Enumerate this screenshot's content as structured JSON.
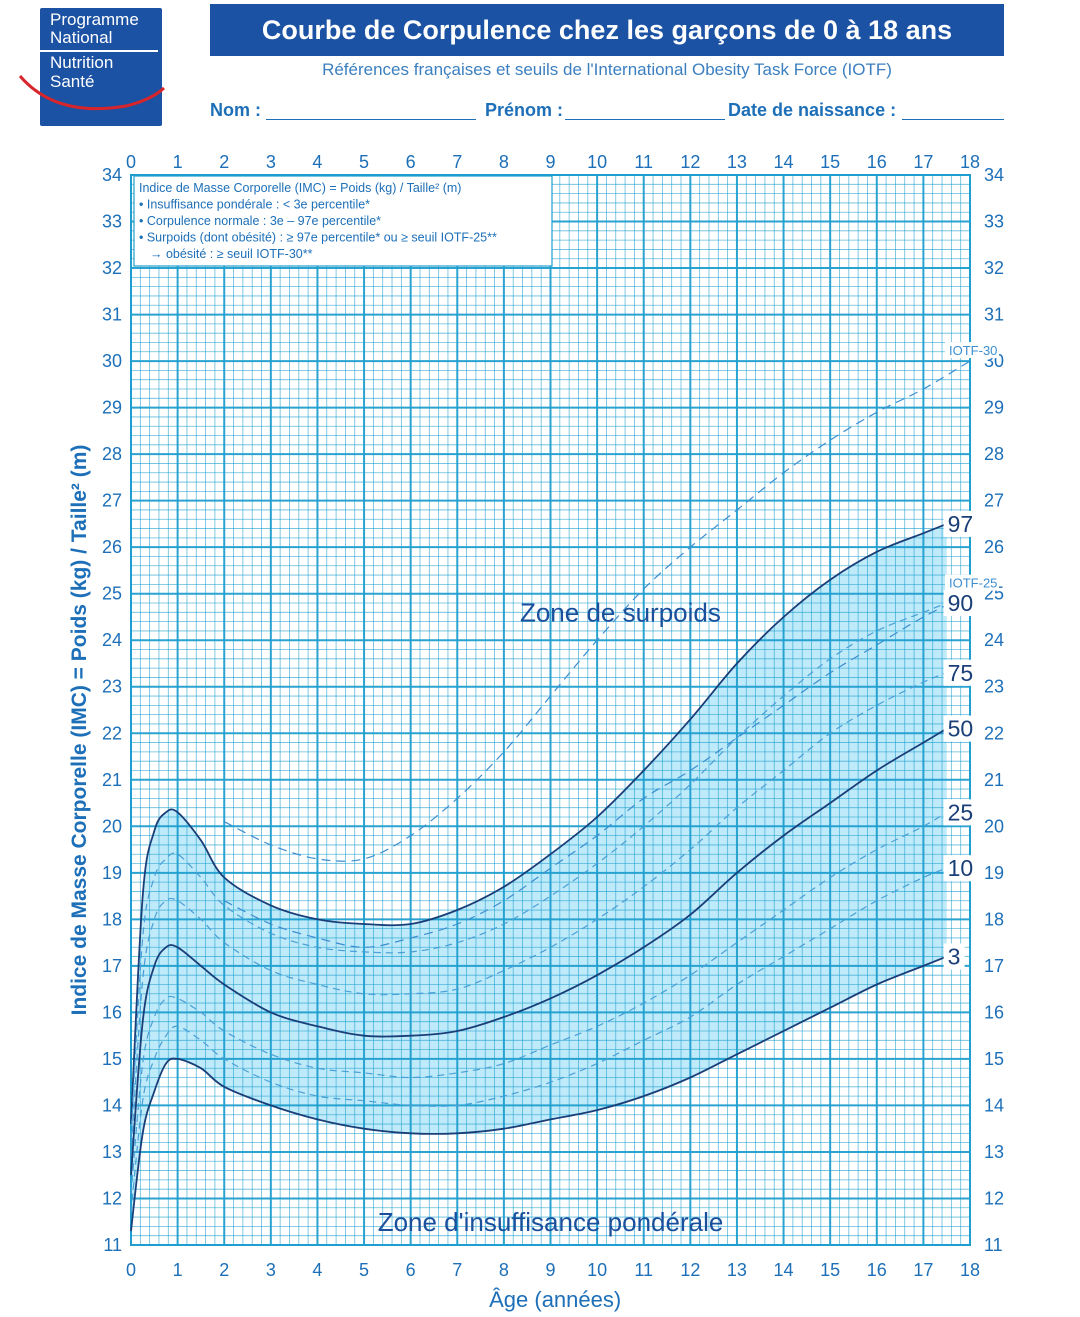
{
  "logo": {
    "line1": "Programme",
    "line2": "National",
    "line3": "Nutrition",
    "line4": "Santé"
  },
  "header": {
    "title": "Courbe de Corpulence chez les garçons de 0 à 18 ans",
    "subtitle": "Références françaises et seuils de l'International Obesity Task Force (IOTF)"
  },
  "fields": {
    "nom": "Nom :",
    "prenom": "Prénom :",
    "date": "Date de naissance :"
  },
  "colors": {
    "brand": "#1b52a3",
    "grid": "#1f9fcf",
    "curve": "#1a3e78",
    "zone": "#bfeafa"
  },
  "chart_data": {
    "type": "line",
    "xlabel": "Âge (années)",
    "ylabel": "Indice de Masse Corporelle (IMC) = Poids (kg) / Taille² (m)",
    "xlim": [
      0,
      18
    ],
    "ylim": [
      11,
      34
    ],
    "x_ticks": [
      0,
      1,
      2,
      3,
      4,
      5,
      6,
      7,
      8,
      9,
      10,
      11,
      12,
      13,
      14,
      15,
      16,
      17,
      18
    ],
    "y_ticks": [
      11,
      12,
      13,
      14,
      15,
      16,
      17,
      18,
      19,
      20,
      21,
      22,
      23,
      24,
      25,
      26,
      27,
      28,
      29,
      30,
      31,
      32,
      33,
      34
    ],
    "grid": true,
    "legend_box": {
      "line1": "Indice de Masse Corporelle (IMC) = Poids (kg) / Taille² (m)",
      "line2": "• Insuffisance pondérale : < 3e percentile*",
      "line3": "• Corpulence normale : 3e – 97e percentile*",
      "line4": "• Surpoids (dont obésité) : ≥ 97e percentile* ou ≥ seuil IOTF-25**",
      "line5": "→ obésité : ≥ seuil IOTF-30**"
    },
    "annotations": {
      "overweight_zone": "Zone de surpoids",
      "underweight_zone": "Zone d'insuffisance pondérale"
    },
    "series": [
      {
        "name": "97",
        "style": "solid",
        "label_shown": true,
        "x": [
          0,
          0.25,
          0.5,
          0.75,
          1,
          1.5,
          2,
          3,
          4,
          5,
          6,
          7,
          8,
          9,
          10,
          11,
          12,
          13,
          14,
          15,
          16,
          17,
          17.5
        ],
        "y": [
          13.6,
          18.5,
          19.9,
          20.3,
          20.3,
          19.7,
          18.9,
          18.3,
          18.0,
          17.9,
          17.9,
          18.2,
          18.7,
          19.4,
          20.2,
          21.2,
          22.3,
          23.5,
          24.5,
          25.3,
          25.9,
          26.3,
          26.5
        ]
      },
      {
        "name": "90",
        "style": "dashed",
        "label_shown": true,
        "x": [
          0,
          0.25,
          0.5,
          0.75,
          1,
          1.5,
          2,
          3,
          4,
          5,
          6,
          7,
          8,
          9,
          10,
          11,
          12,
          13,
          14,
          15,
          16,
          17,
          17.5
        ],
        "y": [
          13.3,
          17.6,
          18.9,
          19.3,
          19.4,
          18.9,
          18.3,
          17.7,
          17.4,
          17.3,
          17.3,
          17.5,
          17.9,
          18.5,
          19.2,
          20.0,
          20.9,
          21.9,
          22.8,
          23.6,
          24.2,
          24.6,
          24.8
        ]
      },
      {
        "name": "75",
        "style": "dashed",
        "label_shown": true,
        "x": [
          0,
          0.25,
          0.5,
          0.75,
          1,
          1.5,
          2,
          3,
          4,
          5,
          6,
          7,
          8,
          9,
          10,
          11,
          12,
          13,
          14,
          15,
          16,
          17,
          17.5
        ],
        "y": [
          12.9,
          16.7,
          18.0,
          18.4,
          18.4,
          18.0,
          17.5,
          16.9,
          16.6,
          16.4,
          16.4,
          16.5,
          16.9,
          17.4,
          18.0,
          18.7,
          19.5,
          20.4,
          21.2,
          22.0,
          22.6,
          23.1,
          23.3
        ]
      },
      {
        "name": "50",
        "style": "solid",
        "label_shown": true,
        "x": [
          0,
          0.25,
          0.5,
          0.75,
          1,
          1.5,
          2,
          3,
          4,
          5,
          6,
          7,
          8,
          9,
          10,
          11,
          12,
          13,
          14,
          15,
          16,
          17,
          17.5
        ],
        "y": [
          12.5,
          15.8,
          17.0,
          17.4,
          17.4,
          17.0,
          16.6,
          16.0,
          15.7,
          15.5,
          15.5,
          15.6,
          15.9,
          16.3,
          16.8,
          17.4,
          18.1,
          19.0,
          19.8,
          20.5,
          21.2,
          21.8,
          22.1
        ]
      },
      {
        "name": "25",
        "style": "dashed",
        "label_shown": true,
        "x": [
          0,
          0.25,
          0.5,
          0.75,
          1,
          1.5,
          2,
          3,
          4,
          5,
          6,
          7,
          8,
          9,
          10,
          11,
          12,
          13,
          14,
          15,
          16,
          17,
          17.5
        ],
        "y": [
          12.1,
          14.9,
          15.9,
          16.3,
          16.3,
          16.0,
          15.6,
          15.1,
          14.8,
          14.7,
          14.6,
          14.7,
          14.9,
          15.3,
          15.7,
          16.2,
          16.8,
          17.5,
          18.2,
          18.9,
          19.5,
          20.0,
          20.3
        ]
      },
      {
        "name": "10",
        "style": "dashed",
        "label_shown": true,
        "x": [
          0,
          0.25,
          0.5,
          0.75,
          1,
          1.5,
          2,
          3,
          4,
          5,
          6,
          7,
          8,
          9,
          10,
          11,
          12,
          13,
          14,
          15,
          16,
          17,
          17.5
        ],
        "y": [
          11.7,
          14.1,
          15.0,
          15.5,
          15.7,
          15.4,
          15.0,
          14.5,
          14.2,
          14.1,
          14.0,
          14.0,
          14.2,
          14.5,
          14.9,
          15.4,
          15.9,
          16.6,
          17.2,
          17.8,
          18.4,
          18.9,
          19.1
        ]
      },
      {
        "name": "3",
        "style": "solid",
        "label_shown": true,
        "x": [
          0,
          0.25,
          0.5,
          0.75,
          1,
          1.5,
          2,
          3,
          4,
          5,
          6,
          7,
          8,
          9,
          10,
          11,
          12,
          13,
          14,
          15,
          16,
          17,
          17.5
        ],
        "y": [
          11.3,
          13.4,
          14.3,
          14.9,
          15.0,
          14.8,
          14.4,
          14.0,
          13.7,
          13.5,
          13.4,
          13.4,
          13.5,
          13.7,
          13.9,
          14.2,
          14.6,
          15.1,
          15.6,
          16.1,
          16.6,
          17.0,
          17.2
        ]
      },
      {
        "name": "IOTF-30",
        "style": "dashed",
        "label_shown": true,
        "x": [
          2,
          3,
          4,
          5,
          6,
          7,
          8,
          9,
          10,
          11,
          12,
          13,
          14,
          15,
          16,
          17,
          18
        ],
        "y": [
          20.1,
          19.6,
          19.3,
          19.3,
          19.8,
          20.6,
          21.6,
          22.8,
          24.0,
          25.1,
          26.0,
          26.8,
          27.6,
          28.3,
          28.9,
          29.4,
          30.0
        ]
      },
      {
        "name": "IOTF-25",
        "style": "dashed",
        "label_shown": true,
        "x": [
          2,
          3,
          4,
          5,
          6,
          7,
          8,
          9,
          10,
          11,
          12,
          13,
          14,
          15,
          16,
          17,
          18
        ],
        "y": [
          18.4,
          17.9,
          17.6,
          17.4,
          17.6,
          17.9,
          18.4,
          19.1,
          19.8,
          20.6,
          21.2,
          21.9,
          22.6,
          23.3,
          23.9,
          24.5,
          25.0
        ]
      }
    ]
  }
}
